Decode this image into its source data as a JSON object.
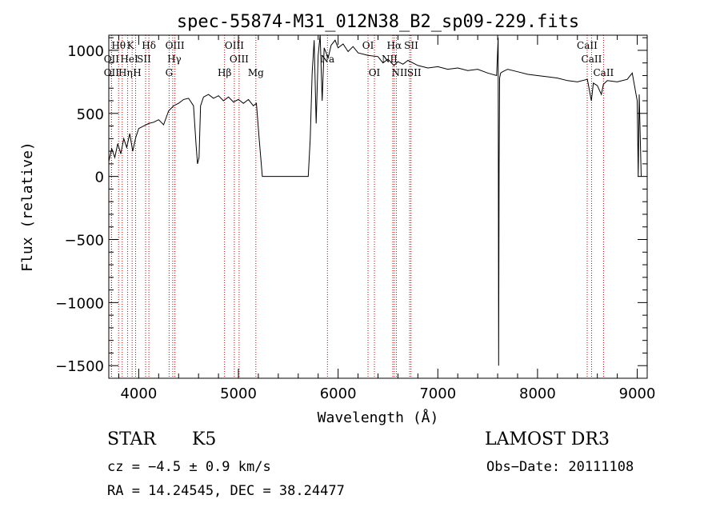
{
  "chart_data": {
    "type": "line",
    "title": "spec-55874-M31_012N38_B2_sp09-229.fits",
    "xlabel": "Wavelength (Å)",
    "ylabel": "Flux (relative)",
    "xlim": [
      3700,
      9100
    ],
    "ylim": [
      -1600,
      1120
    ],
    "x_ticks": [
      4000,
      5000,
      6000,
      7000,
      8000,
      9000
    ],
    "y_ticks": [
      -1500,
      -1000,
      -500,
      0,
      500,
      1000
    ],
    "grid": false,
    "series": [
      {
        "name": "spectrum",
        "x": [
          3700,
          3730,
          3760,
          3790,
          3820,
          3850,
          3880,
          3910,
          3940,
          3970,
          4000,
          4050,
          4100,
          4150,
          4200,
          4250,
          4300,
          4350,
          4400,
          4450,
          4500,
          4550,
          4575,
          4590,
          4605,
          4620,
          4650,
          4700,
          4750,
          4800,
          4850,
          4900,
          4950,
          5000,
          5050,
          5100,
          5150,
          5180,
          5210,
          5240,
          5300,
          5400,
          5500,
          5600,
          5700,
          5720,
          5740,
          5760,
          5780,
          5800,
          5820,
          5840,
          5860,
          5880,
          5900,
          5930,
          5970,
          6000,
          6050,
          6100,
          6150,
          6200,
          6300,
          6400,
          6450,
          6500,
          6560,
          6600,
          6650,
          6700,
          6800,
          6900,
          7000,
          7100,
          7200,
          7300,
          7400,
          7500,
          7590,
          7605,
          7610,
          7615,
          7620,
          7630,
          7650,
          7700,
          7800,
          7900,
          8000,
          8100,
          8200,
          8300,
          8400,
          8500,
          8540,
          8560,
          8600,
          8640,
          8660,
          8700,
          8800,
          8900,
          8950,
          9000,
          9010,
          9020,
          9040
        ],
        "y": [
          120,
          220,
          150,
          260,
          180,
          300,
          230,
          340,
          200,
          310,
          380,
          400,
          420,
          430,
          450,
          410,
          520,
          560,
          580,
          610,
          620,
          560,
          250,
          100,
          150,
          560,
          630,
          650,
          620,
          640,
          600,
          630,
          590,
          610,
          580,
          610,
          560,
          580,
          280,
          0,
          0,
          0,
          0,
          0,
          0,
          300,
          820,
          1080,
          420,
          960,
          1120,
          600,
          1020,
          980,
          940,
          1040,
          1080,
          1020,
          1050,
          990,
          1030,
          980,
          960,
          950,
          900,
          930,
          880,
          910,
          890,
          920,
          880,
          860,
          870,
          850,
          860,
          840,
          850,
          820,
          800,
          1100,
          -1500,
          100,
          780,
          820,
          830,
          850,
          830,
          810,
          800,
          790,
          780,
          760,
          750,
          770,
          600,
          740,
          720,
          650,
          730,
          760,
          750,
          770,
          820,
          600,
          0,
          650,
          0
        ]
      }
    ],
    "lines": [
      {
        "label": "Hθ",
        "x": 3798
      },
      {
        "label": "OII",
        "x": 3727
      },
      {
        "label": "OII",
        "x": 3727
      },
      {
        "label": "K",
        "x": 3934
      },
      {
        "label": "HeI",
        "x": 3889
      },
      {
        "label": "Hη",
        "x": 3835
      },
      {
        "label": "Hδ",
        "x": 4102
      },
      {
        "label": "SII",
        "x": 4069
      },
      {
        "label": "H",
        "x": 3969
      },
      {
        "label": "OIII",
        "x": 4363
      },
      {
        "label": "Hγ",
        "x": 4341
      },
      {
        "label": "G",
        "x": 4305
      },
      {
        "label": "Hβ",
        "x": 4861
      },
      {
        "label": "OIII",
        "x": 4959
      },
      {
        "label": "OIII",
        "x": 5007
      },
      {
        "label": "Mg",
        "x": 5175
      },
      {
        "label": "Na",
        "x": 5893
      },
      {
        "label": "OI",
        "x": 6300
      },
      {
        "label": "OI",
        "x": 6364
      },
      {
        "label": "Hα",
        "x": 6563
      },
      {
        "label": "NII",
        "x": 6548
      },
      {
        "label": "NII",
        "x": 6584
      },
      {
        "label": "SII",
        "x": 6717
      },
      {
        "label": "SII",
        "x": 6731
      },
      {
        "label": "CaII",
        "x": 8498
      },
      {
        "label": "CaII",
        "x": 8542
      },
      {
        "label": "CaII",
        "x": 8662
      }
    ]
  },
  "info": {
    "object_type": "STAR",
    "subclass": "K5",
    "survey": "LAMOST DR3",
    "cz": "cz = −4.5 ± 0.9 km/s",
    "obs_date": "Obs−Date: 20111108",
    "coords": "RA =  14.24545, DEC =  38.24477"
  },
  "colors": {
    "spectrum": "#000000",
    "line_marker": "#cc0000",
    "axis": "#000000",
    "background": "#ffffff"
  }
}
